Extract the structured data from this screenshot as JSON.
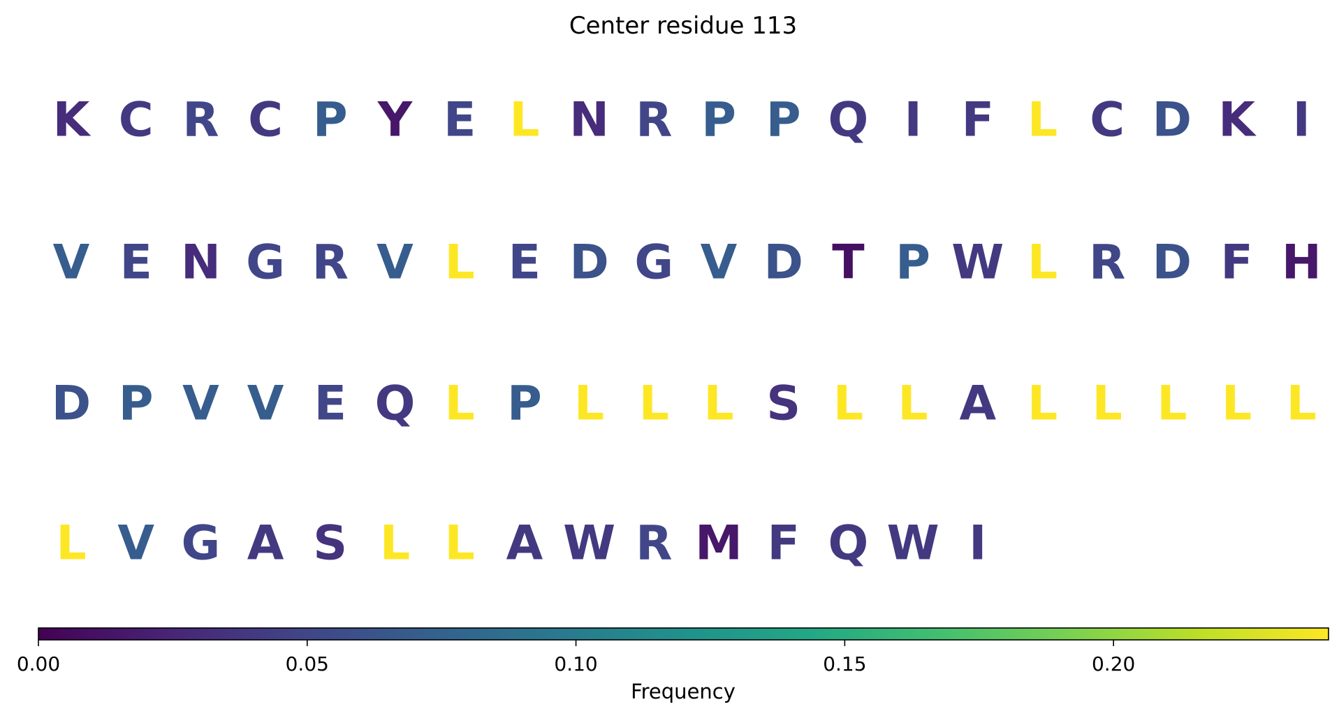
{
  "chart_data": {
    "type": "table",
    "title": "Center residue 113",
    "colormap": "viridis",
    "colorbar": {
      "label": "Frequency",
      "range": [
        0,
        0.24
      ],
      "ticks": [
        0.0,
        0.05,
        0.1,
        0.15,
        0.2
      ],
      "tick_labels": [
        "0.00",
        "0.05",
        "0.10",
        "0.15",
        "0.20"
      ],
      "placement": "bottom"
    },
    "columns_per_row": 20,
    "residues": [
      {
        "aa": "K",
        "frequency": 0.03
      },
      {
        "aa": "C",
        "frequency": 0.04
      },
      {
        "aa": "R",
        "frequency": 0.05
      },
      {
        "aa": "C",
        "frequency": 0.04
      },
      {
        "aa": "P",
        "frequency": 0.07
      },
      {
        "aa": "Y",
        "frequency": 0.015
      },
      {
        "aa": "E",
        "frequency": 0.05
      },
      {
        "aa": "L",
        "frequency": 0.24
      },
      {
        "aa": "N",
        "frequency": 0.03
      },
      {
        "aa": "R",
        "frequency": 0.05
      },
      {
        "aa": "P",
        "frequency": 0.07
      },
      {
        "aa": "P",
        "frequency": 0.07
      },
      {
        "aa": "Q",
        "frequency": 0.04
      },
      {
        "aa": "I",
        "frequency": 0.04
      },
      {
        "aa": "F",
        "frequency": 0.04
      },
      {
        "aa": "L",
        "frequency": 0.24
      },
      {
        "aa": "C",
        "frequency": 0.04
      },
      {
        "aa": "D",
        "frequency": 0.06
      },
      {
        "aa": "K",
        "frequency": 0.03
      },
      {
        "aa": "I",
        "frequency": 0.04
      },
      {
        "aa": "V",
        "frequency": 0.07
      },
      {
        "aa": "E",
        "frequency": 0.05
      },
      {
        "aa": "N",
        "frequency": 0.03
      },
      {
        "aa": "G",
        "frequency": 0.05
      },
      {
        "aa": "R",
        "frequency": 0.05
      },
      {
        "aa": "V",
        "frequency": 0.07
      },
      {
        "aa": "L",
        "frequency": 0.24
      },
      {
        "aa": "E",
        "frequency": 0.05
      },
      {
        "aa": "D",
        "frequency": 0.06
      },
      {
        "aa": "G",
        "frequency": 0.05
      },
      {
        "aa": "V",
        "frequency": 0.07
      },
      {
        "aa": "D",
        "frequency": 0.06
      },
      {
        "aa": "T",
        "frequency": 0.01
      },
      {
        "aa": "P",
        "frequency": 0.07
      },
      {
        "aa": "W",
        "frequency": 0.04
      },
      {
        "aa": "L",
        "frequency": 0.24
      },
      {
        "aa": "R",
        "frequency": 0.05
      },
      {
        "aa": "D",
        "frequency": 0.06
      },
      {
        "aa": "F",
        "frequency": 0.04
      },
      {
        "aa": "H",
        "frequency": 0.015
      },
      {
        "aa": "D",
        "frequency": 0.06
      },
      {
        "aa": "P",
        "frequency": 0.07
      },
      {
        "aa": "V",
        "frequency": 0.07
      },
      {
        "aa": "V",
        "frequency": 0.07
      },
      {
        "aa": "E",
        "frequency": 0.05
      },
      {
        "aa": "Q",
        "frequency": 0.04
      },
      {
        "aa": "L",
        "frequency": 0.24
      },
      {
        "aa": "P",
        "frequency": 0.07
      },
      {
        "aa": "L",
        "frequency": 0.24
      },
      {
        "aa": "L",
        "frequency": 0.24
      },
      {
        "aa": "L",
        "frequency": 0.24
      },
      {
        "aa": "S",
        "frequency": 0.035
      },
      {
        "aa": "L",
        "frequency": 0.24
      },
      {
        "aa": "L",
        "frequency": 0.24
      },
      {
        "aa": "A",
        "frequency": 0.04
      },
      {
        "aa": "L",
        "frequency": 0.24
      },
      {
        "aa": "L",
        "frequency": 0.24
      },
      {
        "aa": "L",
        "frequency": 0.24
      },
      {
        "aa": "L",
        "frequency": 0.24
      },
      {
        "aa": "L",
        "frequency": 0.24
      },
      {
        "aa": "L",
        "frequency": 0.24
      },
      {
        "aa": "V",
        "frequency": 0.07
      },
      {
        "aa": "G",
        "frequency": 0.05
      },
      {
        "aa": "A",
        "frequency": 0.04
      },
      {
        "aa": "S",
        "frequency": 0.035
      },
      {
        "aa": "L",
        "frequency": 0.24
      },
      {
        "aa": "L",
        "frequency": 0.24
      },
      {
        "aa": "A",
        "frequency": 0.04
      },
      {
        "aa": "W",
        "frequency": 0.04
      },
      {
        "aa": "R",
        "frequency": 0.05
      },
      {
        "aa": "M",
        "frequency": 0.015
      },
      {
        "aa": "F",
        "frequency": 0.04
      },
      {
        "aa": "Q",
        "frequency": 0.04
      },
      {
        "aa": "W",
        "frequency": 0.04
      },
      {
        "aa": "I",
        "frequency": 0.04
      }
    ]
  }
}
